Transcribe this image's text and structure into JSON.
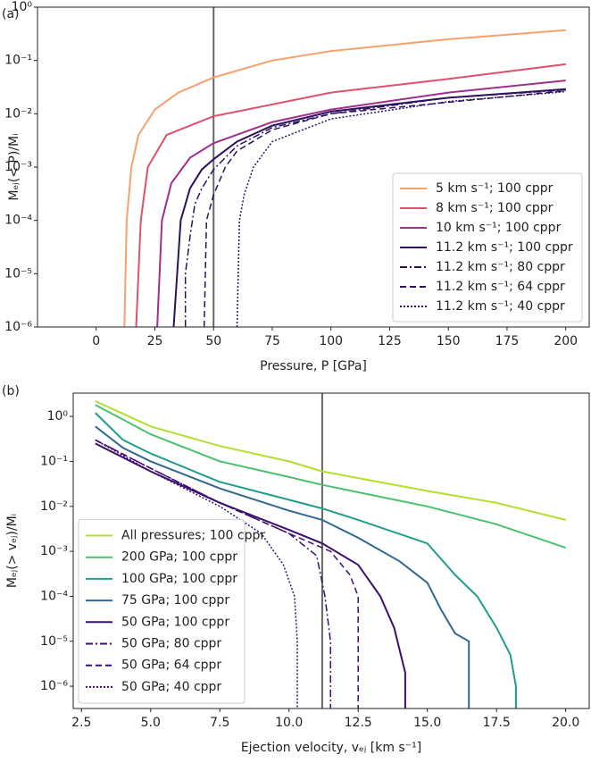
{
  "chart_data": [
    {
      "type": "line",
      "panel_label": "(a)",
      "xlabel": "Pressure, P  [GPa]",
      "ylabel": "Mₑⱼ(< P)/Mᵢ",
      "log_y": true,
      "xlim": [
        -25,
        210
      ],
      "ylim": [
        1e-06,
        1
      ],
      "xticks": [
        0,
        25,
        50,
        75,
        100,
        125,
        150,
        175,
        200
      ],
      "yticks": [
        {
          "value": 1e-06,
          "label": "10⁻⁶"
        },
        {
          "value": 1e-05,
          "label": "10⁻⁵"
        },
        {
          "value": 0.0001,
          "label": "10⁻⁴"
        },
        {
          "value": 0.001,
          "label": "10⁻³"
        },
        {
          "value": 0.01,
          "label": "10⁻²"
        },
        {
          "value": 0.1,
          "label": "10⁻¹"
        },
        {
          "value": 1,
          "label": "10⁰"
        }
      ],
      "vline": 50,
      "legend": "lower right",
      "series": [
        {
          "name": "5 km s⁻¹; 100 cppr",
          "color": "#f8a06a",
          "dash": "solid",
          "x": [
            12,
            13,
            15,
            18,
            25,
            35,
            50,
            75,
            100,
            150,
            200
          ],
          "values": [
            1e-06,
            0.0001,
            0.001,
            0.004,
            0.012,
            0.025,
            0.048,
            0.1,
            0.15,
            0.25,
            0.37
          ]
        },
        {
          "name": "8 km s⁻¹; 100 cppr",
          "color": "#e0506b",
          "dash": "solid",
          "x": [
            17,
            19,
            22,
            30,
            50,
            100,
            150,
            200
          ],
          "values": [
            1e-06,
            0.0001,
            0.001,
            0.004,
            0.009,
            0.025,
            0.045,
            0.085
          ]
        },
        {
          "name": "10 km s⁻¹; 100 cppr",
          "color": "#a22e8c",
          "dash": "solid",
          "x": [
            26,
            28,
            32,
            40,
            50,
            75,
            100,
            150,
            200
          ],
          "values": [
            1e-06,
            0.0001,
            0.0005,
            0.0015,
            0.0028,
            0.007,
            0.012,
            0.025,
            0.042
          ]
        },
        {
          "name": "11.2 km s⁻¹; 100 cppr",
          "color": "#2d1160",
          "dash": "solid",
          "x": [
            33,
            36,
            40,
            45,
            50,
            60,
            75,
            100,
            150,
            200
          ],
          "values": [
            1e-06,
            0.0001,
            0.0004,
            0.0009,
            0.0014,
            0.003,
            0.006,
            0.011,
            0.02,
            0.029
          ]
        },
        {
          "name": "11.2 km s⁻¹; 80 cppr",
          "color": "#2d1160",
          "dash": "dashdot",
          "x": [
            38,
            38,
            40,
            42,
            45,
            50,
            60,
            75,
            100,
            150,
            200
          ],
          "values": [
            1e-06,
            1e-05,
            5e-05,
            0.0002,
            0.0004,
            0.0009,
            0.0025,
            0.0055,
            0.01,
            0.02,
            0.028
          ]
        },
        {
          "name": "11.2 km s⁻¹; 64 cppr",
          "color": "#2d1160",
          "dash": "dashed",
          "x": [
            46,
            47,
            50,
            55,
            60,
            75,
            100,
            200
          ],
          "values": [
            1e-06,
            0.0001,
            0.0003,
            0.001,
            0.002,
            0.005,
            0.01,
            0.027
          ]
        },
        {
          "name": "11.2 km s⁻¹; 40 cppr",
          "color": "#2d1160",
          "dash": "dotted",
          "x": [
            60,
            61,
            63,
            67,
            75,
            100,
            150,
            200
          ],
          "values": [
            1e-06,
            0.0001,
            0.0003,
            0.001,
            0.003,
            0.008,
            0.017,
            0.026
          ]
        }
      ]
    },
    {
      "type": "line",
      "panel_label": "(b)",
      "xlabel": "Ejection velocity, vₑⱼ  [km s⁻¹]",
      "ylabel": "Mₑⱼ(> vₑⱼ)/Mᵢ",
      "log_y": true,
      "xlim": [
        2.2,
        20.85
      ],
      "ylim": [
        3.2e-07,
        3.3
      ],
      "xticks": [
        2.5,
        {
          "value": 5,
          "label": "5.0"
        },
        7.5,
        {
          "value": 10,
          "label": "10.0"
        },
        12.5,
        {
          "value": 15,
          "label": "15.0"
        },
        17.5,
        {
          "value": 20,
          "label": "20.0"
        }
      ],
      "yticks": [
        {
          "value": 1e-06,
          "label": "10⁻⁶"
        },
        {
          "value": 1e-05,
          "label": "10⁻⁵"
        },
        {
          "value": 0.0001,
          "label": "10⁻⁴"
        },
        {
          "value": 0.001,
          "label": "10⁻³"
        },
        {
          "value": 0.01,
          "label": "10⁻²"
        },
        {
          "value": 0.1,
          "label": "10⁻¹"
        },
        {
          "value": 1,
          "label": "10⁰"
        }
      ],
      "vline": 11.2,
      "legend": "lower left",
      "series": [
        {
          "name": "All pressures; 100 cppr",
          "color": "#b5de2b",
          "dash": "solid",
          "x": [
            3,
            5,
            7.5,
            10,
            11.2,
            15,
            17.5,
            20
          ],
          "values": [
            2.2,
            0.6,
            0.22,
            0.1,
            0.06,
            0.022,
            0.012,
            0.005
          ]
        },
        {
          "name": "200 GPa; 100 cppr",
          "color": "#4ac16d",
          "dash": "solid",
          "x": [
            3,
            5,
            7.5,
            10,
            11.2,
            15,
            17.5,
            20
          ],
          "values": [
            1.8,
            0.4,
            0.1,
            0.045,
            0.03,
            0.01,
            0.004,
            0.0012
          ]
        },
        {
          "name": "100 GPa; 100 cppr",
          "color": "#1f9e89",
          "dash": "solid",
          "x": [
            3,
            4,
            5,
            7.5,
            10,
            11.2,
            12.5,
            15,
            16,
            16.8,
            17.5,
            18,
            18.2,
            18.2
          ],
          "values": [
            1.2,
            0.3,
            0.15,
            0.035,
            0.014,
            0.009,
            0.005,
            0.0015,
            0.0003,
            0.0001,
            2e-05,
            5e-06,
            1e-06,
            3.2e-07
          ]
        },
        {
          "name": "75 GPa; 100 cppr",
          "color": "#31688e",
          "dash": "solid",
          "x": [
            3,
            4,
            5,
            7.5,
            10,
            11.2,
            12.5,
            14,
            15,
            15.5,
            16,
            16.5,
            16.5
          ],
          "values": [
            0.6,
            0.2,
            0.1,
            0.025,
            0.008,
            0.005,
            0.002,
            0.0006,
            0.0002,
            5e-05,
            1.5e-05,
            1e-05,
            3.2e-07
          ]
        },
        {
          "name": "50 GPa; 100 cppr",
          "color": "#3b0f70",
          "dash": "solid",
          "x": [
            3,
            5,
            7.5,
            10,
            11.2,
            12.5,
            13.3,
            13.8,
            14.2,
            14.2
          ],
          "values": [
            0.25,
            0.06,
            0.012,
            0.003,
            0.0015,
            0.0005,
            0.0001,
            2e-05,
            2e-06,
            3.2e-07
          ]
        },
        {
          "name": "50 GPa; 80 cppr",
          "color": "#3b0f70",
          "dash": "dashdot",
          "x": [
            3,
            5,
            7.5,
            10,
            11,
            11.3,
            11.5,
            11.5
          ],
          "values": [
            0.3,
            0.07,
            0.012,
            0.0025,
            0.0008,
            0.0001,
            1e-05,
            3.2e-07
          ]
        },
        {
          "name": "50 GPa; 64 cppr",
          "color": "#3b0f70",
          "dash": "dashed",
          "x": [
            3,
            5,
            7.5,
            10,
            11.5,
            12.2,
            12.5,
            12.5
          ],
          "values": [
            0.3,
            0.07,
            0.012,
            0.0025,
            0.001,
            0.0003,
            0.0001,
            3.2e-07
          ]
        },
        {
          "name": "50 GPa; 40 cppr",
          "color": "#3b0f70",
          "dash": "dotted",
          "x": [
            3,
            5,
            7.5,
            9,
            9.8,
            10.2,
            10.3,
            10.3
          ],
          "values": [
            0.3,
            0.06,
            0.01,
            0.0025,
            0.0005,
            0.0001,
            1e-05,
            3.2e-07
          ]
        }
      ]
    }
  ]
}
